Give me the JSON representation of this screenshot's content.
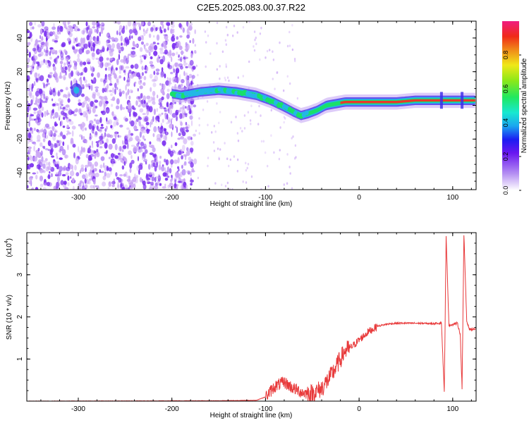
{
  "title": "C2E5.2025.083.00.37.R22",
  "chart_data": [
    {
      "type": "heatmap",
      "xlabel": "Height of straight line (km)",
      "ylabel": "Frequency (Hz)",
      "xlim": [
        -355,
        125
      ],
      "ylim": [
        -50,
        50
      ],
      "xticks": [
        -300,
        -200,
        -100,
        0,
        100
      ],
      "yticks": [
        -40,
        -20,
        0,
        20,
        40
      ],
      "colorbar": {
        "label": "Normalized spectral amplitude",
        "range": [
          0,
          1
        ],
        "ticks": [
          "0.0",
          "0.2",
          "0.4",
          "0.6",
          "0.8"
        ]
      },
      "colors": {
        "noise": "#7b2ff0",
        "noise_light": "#c9a3f5",
        "signal_core": "#e8392b",
        "signal_mid": "#19e06a",
        "signal_edge": "#23b7e6"
      },
      "ridge": {
        "x": [
          -300,
          -210,
          -190,
          -170,
          -150,
          -130,
          -110,
          -95,
          -80,
          -70,
          -62,
          -55,
          -45,
          -35,
          -25,
          -15,
          0,
          20,
          40,
          60,
          80,
          90,
          100,
          110,
          125
        ],
        "y": [
          8,
          8,
          6,
          8,
          9,
          8,
          6,
          3,
          -1,
          -4,
          -6,
          -5,
          -3,
          0,
          1,
          2,
          2,
          2,
          2,
          3,
          3,
          3,
          3,
          3,
          3
        ]
      },
      "noise_region_x": [
        -355,
        -175
      ]
    },
    {
      "type": "line",
      "xlabel": "Height of straight line (km)",
      "ylabel": "SNR (10 * v/v)",
      "yscale_label": "(x10",
      "yscale_exp": "4",
      "xlim": [
        -355,
        125
      ],
      "ylim": [
        0,
        4
      ],
      "xticks": [
        -300,
        -200,
        -100,
        0,
        100
      ],
      "yticks": [
        1,
        2,
        3
      ],
      "color": "#e8393a",
      "series": [
        {
          "x": [
            -355,
            -150,
            -110,
            -100,
            -90,
            -80,
            -70,
            -60,
            -50,
            -40,
            -30,
            -20,
            -15,
            -10,
            0,
            10,
            20,
            30,
            40,
            60,
            80,
            88,
            91,
            93,
            96,
            105,
            108,
            110,
            112,
            115,
            118,
            125
          ],
          "y": [
            0.0,
            0.01,
            0.02,
            0.1,
            0.35,
            0.45,
            0.3,
            0.2,
            0.18,
            0.3,
            0.6,
            1.0,
            1.2,
            1.25,
            1.45,
            1.65,
            1.78,
            1.83,
            1.85,
            1.85,
            1.84,
            1.86,
            0.2,
            3.9,
            1.8,
            1.85,
            1.6,
            0.3,
            3.95,
            1.9,
            1.7,
            1.72
          ]
        }
      ]
    }
  ]
}
